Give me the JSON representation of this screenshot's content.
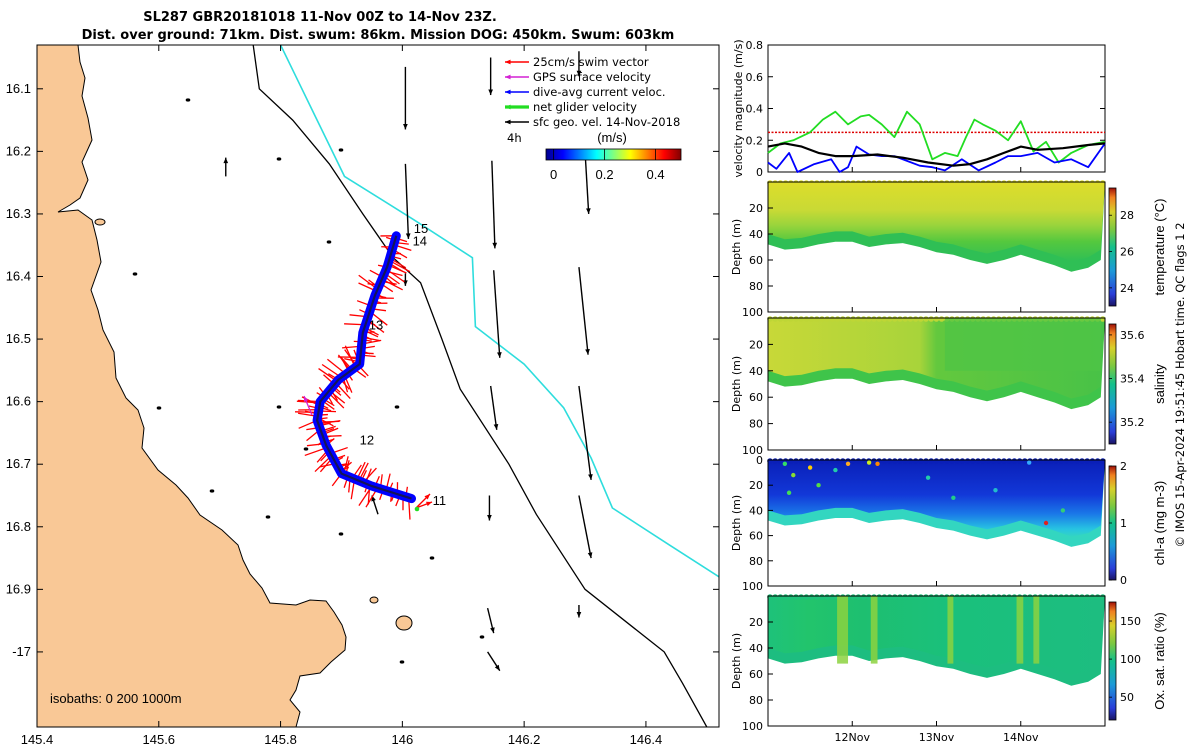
{
  "title": {
    "line1": "SL287 GBR20181018 11-Nov 00Z to 14-Nov 23Z.",
    "line2": "Dist. over ground: 71km. Dist. swum: 86km. Mission DOG: 450km. Swum: 603km"
  },
  "colors": {
    "land": "#F9C896",
    "isobath_200": "#000000",
    "isobath_1000": "#2EDDDD",
    "swim": "#FF0000",
    "gps": "#D420D4",
    "dive_avg": "#0000FF",
    "net": "#22DD22",
    "geo": "#000000",
    "ref_line": "#DD0000"
  },
  "chart_data": [
    {
      "id": "map",
      "type": "map",
      "xlim": [
        145.4,
        146.52
      ],
      "ylim": [
        -17.12,
        -16.03
      ],
      "xticks": [
        145.4,
        145.6,
        145.8,
        146,
        146.2,
        146.4
      ],
      "xtick_labels": [
        "145.4",
        "145.6",
        "145.8",
        "146",
        "146.2",
        "146.4"
      ],
      "yticks": [
        -16.1,
        -16.2,
        -16.3,
        -16.4,
        -16.5,
        -16.6,
        -16.7,
        -16.8,
        -16.9,
        -17
      ],
      "ytick_labels": [
        "16.1",
        "16.2",
        "16.3",
        "16.4",
        "16.5",
        "16.6",
        "16.7",
        "16.8",
        "16.9",
        "-17"
      ],
      "isobaths_label": "isobaths: 0   200  1000m",
      "legend": [
        {
          "label": "25cm/s swim vector",
          "color": "#FF0000"
        },
        {
          "label": "GPS surface velocity",
          "color": "#D420D4"
        },
        {
          "label": "dive-avg current veloc.",
          "color": "#0000FF"
        },
        {
          "label": "net glider velocity",
          "color": "#22DD22"
        },
        {
          "label": "sfc geo. vel. 14-Nov-2018",
          "color": "#000000"
        }
      ],
      "legend_extra": "4h",
      "colorbar": {
        "label": "(m/s)",
        "ticks": [
          0,
          0.2,
          0.4
        ],
        "tick_labels": [
          "0",
          "0.2",
          "0.4"
        ],
        "range": [
          -0.03,
          0.5
        ]
      },
      "day_labels": [
        {
          "text": "15",
          "lon": 146.004,
          "lat": -16.324
        },
        {
          "text": "14",
          "lon": 146.002,
          "lat": -16.344
        },
        {
          "text": "13",
          "lon": 145.93,
          "lat": -16.478
        },
        {
          "text": "12",
          "lon": 145.915,
          "lat": -16.662
        },
        {
          "text": "11",
          "lon": 146.035,
          "lat": -16.759
        }
      ],
      "track": [
        [
          145.99,
          -16.335
        ],
        [
          145.975,
          -16.385
        ],
        [
          145.955,
          -16.43
        ],
        [
          145.935,
          -16.49
        ],
        [
          145.93,
          -16.54
        ],
        [
          145.895,
          -16.565
        ],
        [
          145.865,
          -16.6
        ],
        [
          145.86,
          -16.63
        ],
        [
          145.875,
          -16.67
        ],
        [
          145.9,
          -16.715
        ],
        [
          145.95,
          -16.735
        ],
        [
          146.015,
          -16.755
        ]
      ],
      "isobath_200": [
        [
          145.755,
          -16.03
        ],
        [
          145.765,
          -16.1
        ],
        [
          145.82,
          -16.15
        ],
        [
          145.88,
          -16.22
        ],
        [
          145.935,
          -16.3
        ],
        [
          145.985,
          -16.37
        ],
        [
          146.03,
          -16.41
        ],
        [
          146.065,
          -16.5
        ],
        [
          146.095,
          -16.58
        ],
        [
          146.175,
          -16.7
        ],
        [
          146.22,
          -16.78
        ],
        [
          146.3,
          -16.9
        ],
        [
          146.43,
          -17.0
        ],
        [
          146.46,
          -17.05
        ],
        [
          146.5,
          -17.12
        ]
      ],
      "isobath_1000": [
        [
          145.8,
          -16.03
        ],
        [
          145.825,
          -16.08
        ],
        [
          145.86,
          -16.15
        ],
        [
          145.905,
          -16.24
        ],
        [
          146.02,
          -16.31
        ],
        [
          146.115,
          -16.37
        ],
        [
          146.12,
          -16.48
        ],
        [
          146.2,
          -16.54
        ],
        [
          146.265,
          -16.61
        ],
        [
          146.31,
          -16.69
        ],
        [
          146.345,
          -16.77
        ],
        [
          146.44,
          -16.83
        ],
        [
          146.52,
          -16.88
        ]
      ],
      "geo_vectors": [
        [
          146.005,
          -16.065,
          0.0,
          -0.1
        ],
        [
          146.145,
          -16.05,
          0.0,
          -0.06
        ],
        [
          146.29,
          -16.04,
          0.0,
          -0.04
        ],
        [
          146.005,
          -16.22,
          0.005,
          -0.12
        ],
        [
          146.147,
          -16.215,
          0.005,
          -0.14
        ],
        [
          146.3,
          -16.2,
          0.006,
          -0.1
        ],
        [
          146.005,
          -16.395,
          0.0,
          -0.02
        ],
        [
          146.15,
          -16.39,
          0.01,
          -0.14
        ],
        [
          146.29,
          -16.385,
          0.015,
          -0.14
        ],
        [
          146.145,
          -16.575,
          0.01,
          -0.07
        ],
        [
          146.29,
          -16.575,
          0.02,
          -0.15
        ],
        [
          146.143,
          -16.75,
          0.0,
          -0.04
        ],
        [
          146.29,
          -16.75,
          0.02,
          -0.1
        ],
        [
          146.14,
          -16.93,
          0.01,
          -0.04
        ],
        [
          146.29,
          -16.925,
          0.0,
          -0.02
        ],
        [
          146.14,
          -17.0,
          0.02,
          -0.03
        ],
        [
          145.96,
          -16.78,
          -0.01,
          0.03
        ],
        [
          145.71,
          -16.24,
          0.0,
          0.03
        ]
      ]
    },
    {
      "id": "velocity",
      "type": "line",
      "xlim": [
        11,
        15
      ],
      "ylim": [
        0,
        0.8
      ],
      "yticks": [
        0,
        0.2,
        0.4,
        0.6,
        0.8
      ],
      "ytick_labels": [
        "0",
        "0.2",
        "0.4",
        "0.6",
        "0.8"
      ],
      "ylabel": "velocity magnitude (m/s)",
      "ref_line": 0.25,
      "series": [
        {
          "name": "net glider velocity",
          "color": "#22DD22",
          "x": [
            11,
            11.15,
            11.3,
            11.5,
            11.65,
            11.8,
            11.95,
            12.1,
            12.2,
            12.35,
            12.5,
            12.65,
            12.8,
            12.95,
            13.1,
            13.25,
            13.35,
            13.45,
            13.55,
            13.7,
            13.85,
            14.0,
            14.15,
            14.3,
            14.45,
            14.6,
            14.8,
            15.0
          ],
          "y": [
            0.12,
            0.18,
            0.2,
            0.25,
            0.33,
            0.38,
            0.3,
            0.35,
            0.36,
            0.3,
            0.22,
            0.38,
            0.3,
            0.08,
            0.12,
            0.1,
            0.22,
            0.33,
            0.3,
            0.26,
            0.2,
            0.32,
            0.13,
            0.19,
            0.06,
            0.12,
            0.17,
            0.19
          ]
        },
        {
          "name": "dive-avg current veloc.",
          "color": "#0000FF",
          "x": [
            11,
            11.1,
            11.25,
            11.35,
            11.55,
            11.75,
            11.85,
            11.95,
            12.05,
            12.2,
            12.35,
            12.5,
            12.65,
            12.8,
            12.95,
            13.1,
            13.3,
            13.5,
            13.7,
            13.85,
            14.0,
            14.2,
            14.4,
            14.6,
            14.8,
            15.0
          ],
          "y": [
            0.06,
            0.02,
            0.12,
            0.0,
            0.05,
            0.08,
            0.0,
            0.03,
            0.16,
            0.11,
            0.1,
            0.1,
            0.07,
            0.04,
            0.03,
            0.01,
            0.08,
            0.01,
            0.06,
            0.1,
            0.1,
            0.12,
            0.06,
            0.08,
            0.03,
            0.18
          ]
        },
        {
          "name": "sfc geo. vel.",
          "color": "#000000",
          "x": [
            11,
            11.2,
            11.4,
            11.6,
            11.8,
            12.0,
            12.3,
            12.6,
            12.9,
            13.2,
            13.4,
            13.6,
            13.8,
            14.0,
            14.2,
            14.5,
            14.8,
            15.0
          ],
          "y": [
            0.16,
            0.18,
            0.16,
            0.12,
            0.1,
            0.1,
            0.11,
            0.09,
            0.06,
            0.04,
            0.05,
            0.08,
            0.12,
            0.16,
            0.14,
            0.15,
            0.17,
            0.18
          ]
        }
      ]
    },
    {
      "id": "temperature",
      "type": "heatmap",
      "ylabel": "Depth (m)",
      "yticks": [
        20,
        40,
        60,
        80,
        100
      ],
      "ytick_labels": [
        "20",
        "40",
        "60",
        "80",
        "100"
      ],
      "ylim": [
        0,
        100
      ],
      "clabel": "temperature (°C)",
      "cticks": [
        "24",
        "26",
        "28"
      ],
      "crange": [
        23,
        29.5
      ],
      "cvals": [
        24,
        26,
        28
      ]
    },
    {
      "id": "salinity",
      "type": "heatmap",
      "ylabel": "Depth (m)",
      "yticks": [
        20,
        40,
        60,
        80,
        100
      ],
      "ytick_labels": [
        "20",
        "40",
        "60",
        "80",
        "100"
      ],
      "ylim": [
        0,
        100
      ],
      "clabel": "salinity",
      "cticks": [
        "35.2",
        "35.4",
        "35.6"
      ],
      "crange": [
        35.1,
        35.65
      ],
      "cvals": [
        35.2,
        35.4,
        35.6
      ]
    },
    {
      "id": "chla",
      "type": "heatmap",
      "ylabel": "Depth (m)",
      "yticks": [
        0,
        20,
        40,
        60,
        80,
        100
      ],
      "ytick_labels": [
        "0",
        "20",
        "40",
        "60",
        "80",
        "100"
      ],
      "ylim": [
        0,
        100
      ],
      "clabel": "chl-a (mg m-3)",
      "cticks": [
        "0",
        "1",
        "2"
      ],
      "crange": [
        0,
        2
      ],
      "cvals": [
        0,
        1,
        2
      ]
    },
    {
      "id": "oxygen",
      "type": "heatmap",
      "ylabel": "Depth (m)",
      "yticks": [
        20,
        40,
        60,
        80,
        100
      ],
      "ytick_labels": [
        "20",
        "40",
        "60",
        "80",
        "100"
      ],
      "ylim": [
        0,
        100
      ],
      "clabel": "Ox. sat. ratio (%)",
      "cticks": [
        "50",
        "100",
        "150"
      ],
      "crange": [
        20,
        175
      ],
      "cvals": [
        50,
        100,
        150
      ]
    }
  ],
  "time_axis": {
    "ticks": [
      12,
      13,
      14
    ],
    "labels": [
      "12Nov",
      "13Nov",
      "14Nov"
    ]
  },
  "side_note": "© IMOS 15-Apr-2024 19:51:45 Hobart time. QC flags 1  2"
}
